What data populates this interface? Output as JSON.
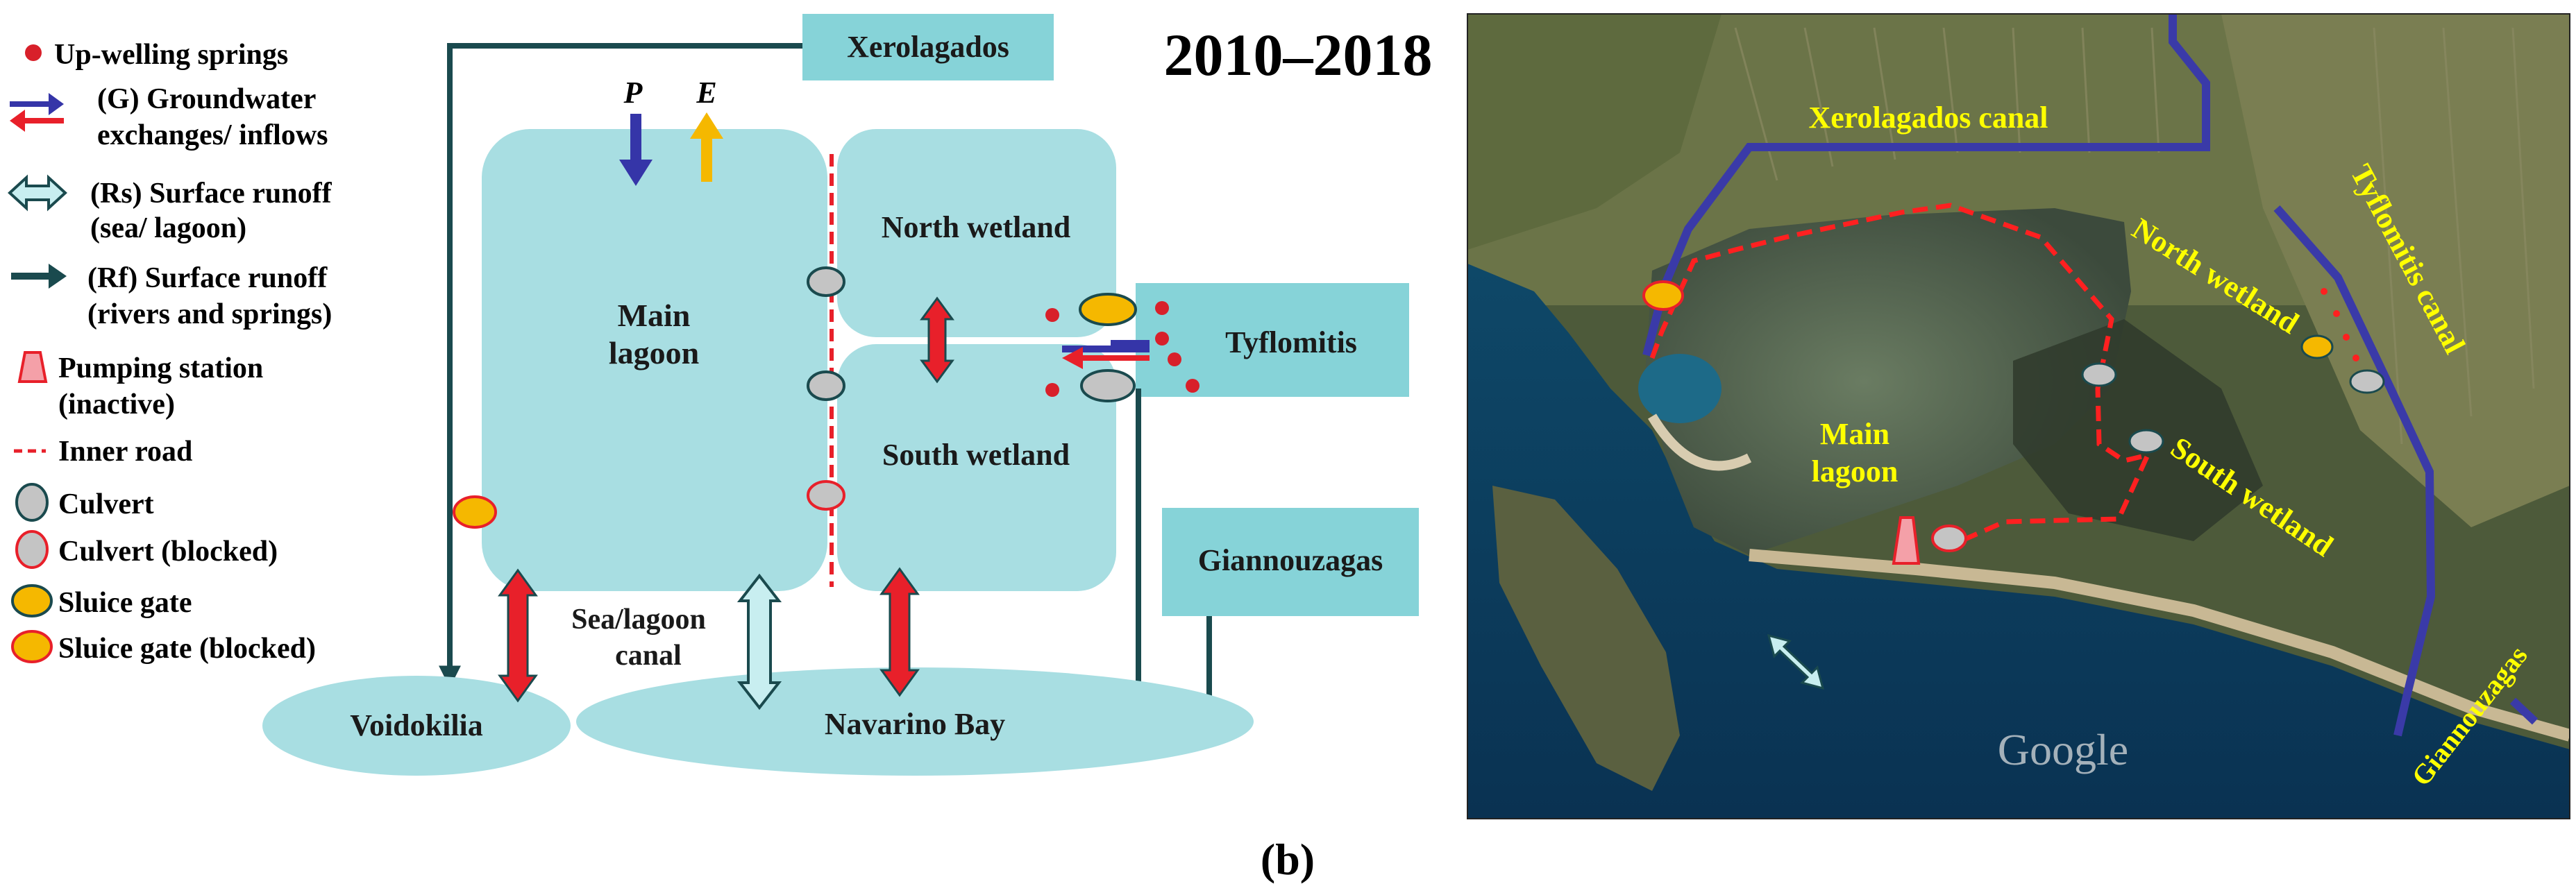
{
  "legend": {
    "springs": "Up-welling springs",
    "groundwater_1": "(G) Groundwater",
    "groundwater_2": "exchanges/ inflows",
    "surface_sea_1": "(Rs) Surface runoff",
    "surface_sea_2": "(sea/ lagoon)",
    "surface_rivers_1": "(Rf) Surface runoff",
    "surface_rivers_2": "(rivers and springs)",
    "pumping_1": "Pumping station",
    "pumping_2": "(inactive)",
    "inner_road": "Inner road",
    "culvert": "Culvert",
    "culvert_blocked": "Culvert (blocked)",
    "sluice": "Sluice gate",
    "sluice_blocked": "Sluice gate (blocked)"
  },
  "diagram": {
    "period": "2010–2018",
    "xerolagados": "Xerolagados",
    "precip": "P",
    "evap": "E",
    "main_lagoon_1": "Main",
    "main_lagoon_2": "lagoon",
    "north_wetland": "North wetland",
    "south_wetland": "South wetland",
    "tyflomitis": "Tyflomitis",
    "giannouzagas": "Giannouzagas",
    "sea_canal_1": "Sea/lagoon",
    "sea_canal_2": "canal",
    "voidokilia": "Voidokilia",
    "navarino": "Navarino Bay"
  },
  "map": {
    "xerolagados_canal": "Xerolagados canal",
    "north_wetland": "North wetland",
    "tyflomitis_canal": "Tyflomitis canal",
    "main_lagoon_1": "Main",
    "main_lagoon_2": "lagoon",
    "south_wetland": "South wetland",
    "giannouzagas": "Giannouzagas",
    "watermark": "Google"
  },
  "caption": "(b)",
  "colors": {
    "box_fill": "#a8dee2",
    "label_box": "#86d3d8",
    "dark_teal": "#1a4a4e",
    "red": "#e8202a",
    "blue_arrow": "#3535a8",
    "yellow": "#f5b800",
    "map_label": "#ffff00",
    "canal": "#3a3aa8",
    "road": "#ff2020"
  },
  "icons": [
    "spring-dot-icon",
    "groundwater-arrow-icon",
    "surface-double-arrow-icon",
    "surface-runoff-arrow-icon",
    "pumping-station-icon",
    "inner-road-icon",
    "culvert-icon",
    "culvert-blocked-icon",
    "sluice-gate-icon",
    "sluice-gate-blocked-icon"
  ]
}
